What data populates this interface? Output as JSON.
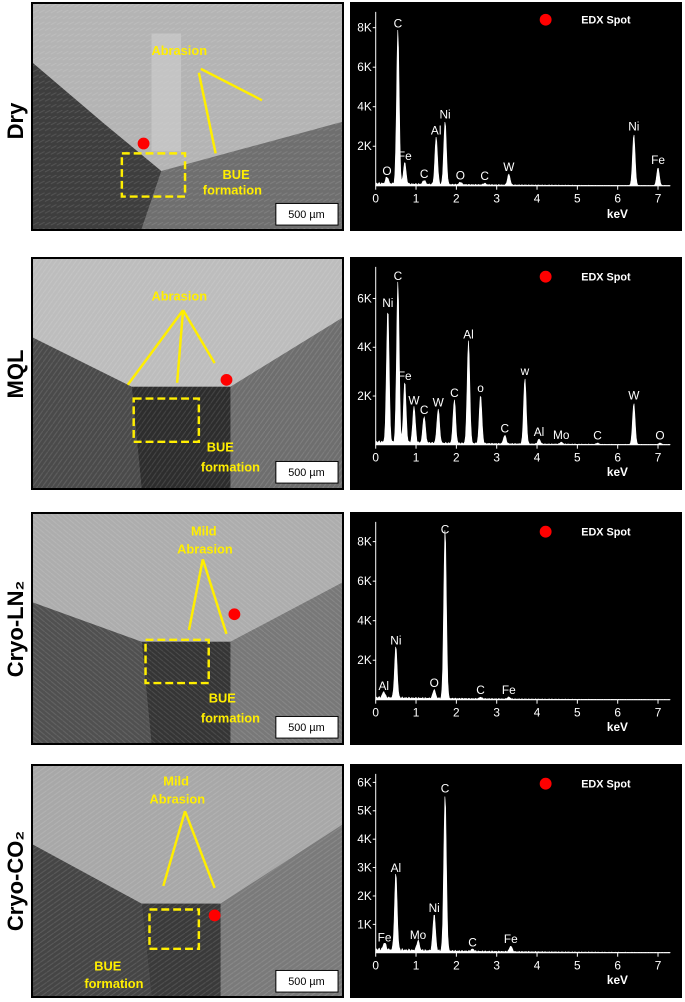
{
  "legend_label": "EDX Spot",
  "x_axis_unit": "keV",
  "scale_bar": "500 µm",
  "colors": {
    "annotation": "#ffee00",
    "spot": "#ff0000",
    "spectrum": "#ffffff",
    "plot_bg": "#000000"
  },
  "panels": [
    {
      "condition": "Dry",
      "annotations": [
        "Abrasion",
        "BUE",
        "formation"
      ],
      "chart_data": {
        "type": "area",
        "xlim": [
          0,
          7.3
        ],
        "ylim": [
          0,
          8800
        ],
        "x_ticks": [
          0,
          1,
          2,
          3,
          4,
          5,
          6,
          7
        ],
        "y_ticks": [
          {
            "v": 2000,
            "label": "2K"
          },
          {
            "v": 4000,
            "label": "4K"
          },
          {
            "v": 6000,
            "label": "6K"
          },
          {
            "v": 8000,
            "label": "8K"
          }
        ],
        "peaks": [
          {
            "label": "O",
            "x": 0.28,
            "y": 350
          },
          {
            "label": "C",
            "x": 0.55,
            "y": 7800
          },
          {
            "label": "Fe",
            "x": 0.72,
            "y": 1100
          },
          {
            "label": "C",
            "x": 1.2,
            "y": 200
          },
          {
            "label": "Al",
            "x": 1.5,
            "y": 2400
          },
          {
            "label": "Ni",
            "x": 1.72,
            "y": 3200
          },
          {
            "label": "O",
            "x": 2.1,
            "y": 120
          },
          {
            "label": "C",
            "x": 2.7,
            "y": 80
          },
          {
            "label": "W",
            "x": 3.3,
            "y": 550
          },
          {
            "label": "Ni",
            "x": 6.4,
            "y": 2600
          },
          {
            "label": "Fe",
            "x": 7.0,
            "y": 900
          }
        ]
      }
    },
    {
      "condition": "MQL",
      "annotations": [
        "Abrasion",
        "BUE",
        "formation"
      ],
      "chart_data": {
        "type": "area",
        "xlim": [
          0,
          7.3
        ],
        "ylim": [
          0,
          7300
        ],
        "x_ticks": [
          0,
          1,
          2,
          3,
          4,
          5,
          6,
          7
        ],
        "y_ticks": [
          {
            "v": 2000,
            "label": "2K"
          },
          {
            "v": 4000,
            "label": "4K"
          },
          {
            "v": 6000,
            "label": "6K"
          }
        ],
        "peaks": [
          {
            "label": "Ni",
            "x": 0.3,
            "y": 5500
          },
          {
            "label": "C",
            "x": 0.55,
            "y": 6600
          },
          {
            "label": "Fe",
            "x": 0.72,
            "y": 2500
          },
          {
            "label": "W",
            "x": 0.95,
            "y": 1500
          },
          {
            "label": "C",
            "x": 1.2,
            "y": 1100
          },
          {
            "label": "W",
            "x": 1.55,
            "y": 1400
          },
          {
            "label": "C",
            "x": 1.95,
            "y": 1800
          },
          {
            "label": "Al",
            "x": 2.3,
            "y": 4200
          },
          {
            "label": "o",
            "x": 2.6,
            "y": 2000
          },
          {
            "label": "C",
            "x": 3.2,
            "y": 350
          },
          {
            "label": "w",
            "x": 3.7,
            "y": 2700
          },
          {
            "label": "Al",
            "x": 4.05,
            "y": 200
          },
          {
            "label": "Mo",
            "x": 4.6,
            "y": 80
          },
          {
            "label": "C",
            "x": 5.5,
            "y": 50
          },
          {
            "label": "W",
            "x": 6.4,
            "y": 1700
          },
          {
            "label": "O",
            "x": 7.05,
            "y": 60
          }
        ]
      }
    },
    {
      "condition": "Cryo-LN₂",
      "annotations": [
        "Mild",
        "Abrasion",
        "BUE",
        "formation"
      ],
      "chart_data": {
        "type": "area",
        "xlim": [
          0,
          7.3
        ],
        "ylim": [
          0,
          9000
        ],
        "x_ticks": [
          0,
          1,
          2,
          3,
          4,
          5,
          6,
          7
        ],
        "y_ticks": [
          {
            "v": 2000,
            "label": "2K"
          },
          {
            "v": 4000,
            "label": "4K"
          },
          {
            "v": 6000,
            "label": "6K"
          },
          {
            "v": 8000,
            "label": "8K"
          }
        ],
        "peaks": [
          {
            "label": "Al",
            "x": 0.2,
            "y": 300
          },
          {
            "label": "Ni",
            "x": 0.5,
            "y": 2600
          },
          {
            "label": "O",
            "x": 1.45,
            "y": 450
          },
          {
            "label": "C",
            "x": 1.72,
            "y": 8600
          },
          {
            "label": "C",
            "x": 2.6,
            "y": 80
          },
          {
            "label": "Fe",
            "x": 3.3,
            "y": 100
          }
        ]
      }
    },
    {
      "condition": "Cryo-CO₂",
      "annotations": [
        "Mild",
        "Abrasion",
        "BUE",
        "formation"
      ],
      "chart_data": {
        "type": "area",
        "xlim": [
          0,
          7.3
        ],
        "ylim": [
          0,
          6300
        ],
        "x_ticks": [
          0,
          1,
          2,
          3,
          4,
          5,
          6,
          7
        ],
        "y_ticks": [
          {
            "v": 1000,
            "label": "1K"
          },
          {
            "v": 2000,
            "label": "2K"
          },
          {
            "v": 3000,
            "label": "3K"
          },
          {
            "v": 4000,
            "label": "4K"
          },
          {
            "v": 5000,
            "label": "5K"
          },
          {
            "v": 6000,
            "label": "6K"
          }
        ],
        "peaks": [
          {
            "label": "Fe",
            "x": 0.22,
            "y": 250
          },
          {
            "label": "Al",
            "x": 0.5,
            "y": 2700
          },
          {
            "label": "Mo",
            "x": 1.05,
            "y": 350
          },
          {
            "label": "Ni",
            "x": 1.45,
            "y": 1300
          },
          {
            "label": "C",
            "x": 1.72,
            "y": 5500
          },
          {
            "label": "C",
            "x": 2.4,
            "y": 80
          },
          {
            "label": "Fe",
            "x": 3.35,
            "y": 200
          }
        ]
      }
    }
  ]
}
